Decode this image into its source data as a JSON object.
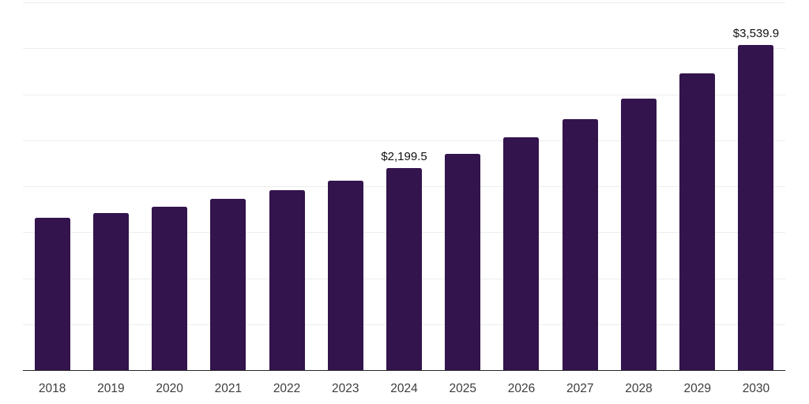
{
  "chart_data": {
    "type": "bar",
    "title": "",
    "categories": [
      "2018",
      "2019",
      "2020",
      "2021",
      "2022",
      "2023",
      "2024",
      "2025",
      "2026",
      "2027",
      "2028",
      "2029",
      "2030"
    ],
    "values": [
      1655,
      1710,
      1775,
      1860,
      1960,
      2060,
      2199.5,
      2350,
      2530,
      2730,
      2955,
      3230,
      3539.9
    ],
    "value_labels": [
      null,
      null,
      null,
      null,
      null,
      null,
      "$2,199.5",
      null,
      null,
      null,
      null,
      null,
      "$3,539.9"
    ],
    "xlabel": "",
    "ylabel": "",
    "ylim": [
      0,
      4000
    ],
    "grid_interval": 500,
    "grid": true,
    "legend_position": "none",
    "colors": {
      "bar": "#33144d",
      "gridline": "#ededed",
      "axis_line": "#262626",
      "tick_label": "#3d3d3d",
      "data_label": "#111111",
      "background": "#ffffff"
    }
  }
}
